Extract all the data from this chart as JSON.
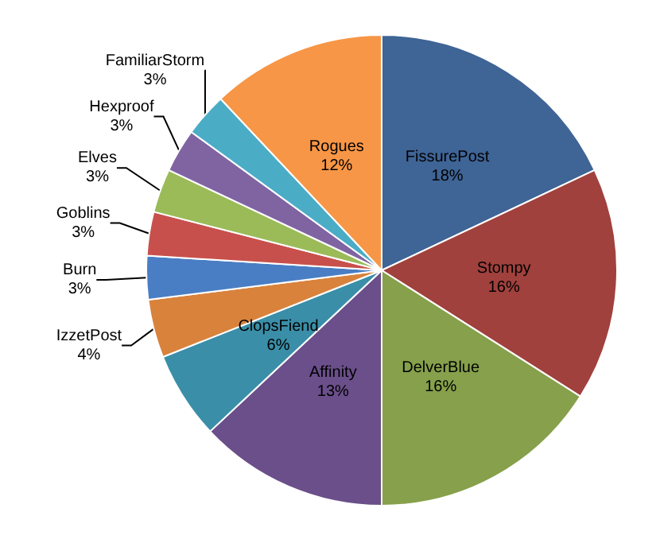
{
  "chart_data": {
    "type": "pie",
    "categories": [
      "FissurePost",
      "Stompy",
      "DelverBlue",
      "Affinity",
      "ClopsFiend",
      "IzzetPost",
      "Burn",
      "Goblins",
      "Elves",
      "Hexproof",
      "FamiliarStorm",
      "Rogues"
    ],
    "values": [
      18,
      16,
      16,
      13,
      6,
      4,
      3,
      3,
      3,
      3,
      3,
      12
    ],
    "colors": [
      "#3f6496",
      "#a0413d",
      "#86a04b",
      "#6a4f8a",
      "#3a8ea8",
      "#d9823c",
      "#4a7ec4",
      "#c8504c",
      "#9bbb59",
      "#8064a2",
      "#4bacc6",
      "#f79646"
    ],
    "value_labels": [
      "18%",
      "16%",
      "16%",
      "13%",
      "6%",
      "4%",
      "3%",
      "3%",
      "3%",
      "3%",
      "3%",
      "12%"
    ],
    "legend": false
  }
}
